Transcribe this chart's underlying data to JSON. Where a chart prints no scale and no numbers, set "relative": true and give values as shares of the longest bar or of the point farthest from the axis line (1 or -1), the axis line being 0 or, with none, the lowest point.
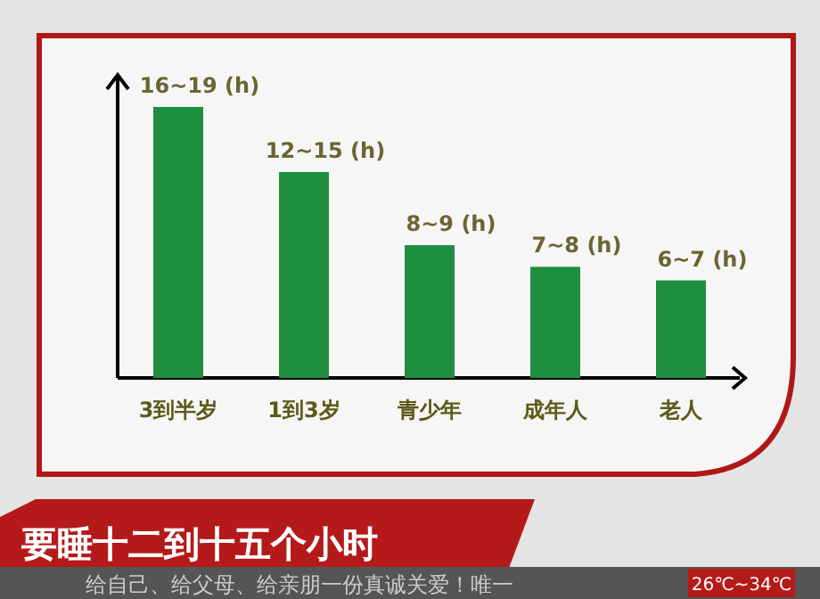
{
  "chart_data": {
    "type": "bar",
    "relative": true,
    "categories": [
      "3到半岁",
      "1到3岁",
      "青少年",
      "成年人",
      "老人"
    ],
    "values": [
      1,
      0.76,
      0.49,
      0.41,
      0.36
    ],
    "color": "#1e8f3e",
    "annotations": [
      {
        "text": "16~19 (h)",
        "x": "3到半岁",
        "y": 1
      },
      {
        "text": "12~15 (h)",
        "x": "1到3岁",
        "y": 0.76
      },
      {
        "text": "8~9 (h)",
        "x": "青少年",
        "y": 0.49
      },
      {
        "text": "7~8 (h)",
        "x": "成年人",
        "y": 0.41
      },
      {
        "text": "6~7 (h)",
        "x": "老人",
        "y": 0.36
      },
      "要睡十二到十五个小时",
      "给自己、给父母、给亲朋一份真诚关爱！唯一",
      "26℃~34℃"
    ]
  }
}
